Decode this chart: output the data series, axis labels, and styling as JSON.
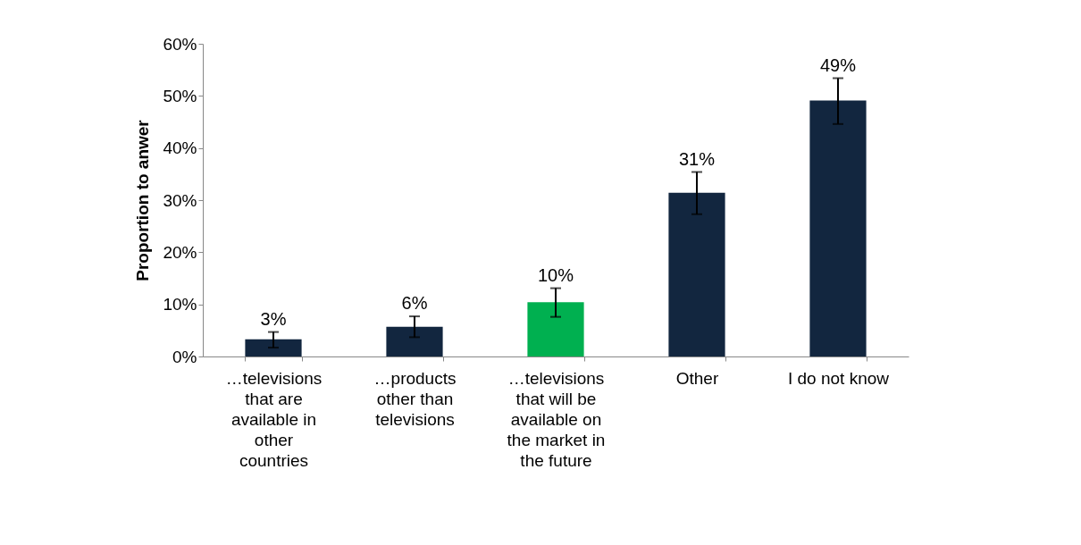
{
  "chart_data": {
    "type": "bar",
    "ylabel": "Proportion to anwer",
    "categories": [
      "…televisions that are available in other countries",
      "…products other than televisions",
      "…televisions that will be available on the market in the future",
      "Other",
      "I do not know"
    ],
    "values": [
      3.3,
      5.7,
      10.4,
      31.4,
      49.1
    ],
    "colors": [
      "#12263f",
      "#12263f",
      "#00b050",
      "#12263f",
      "#12263f"
    ],
    "errors": [
      [
        1.7,
        4.7
      ],
      [
        3.7,
        7.7
      ],
      [
        7.6,
        13.1
      ],
      [
        27.3,
        35.4
      ],
      [
        44.6,
        53.4
      ]
    ],
    "value_labels": [
      "3%",
      "6%",
      "10%",
      "31%",
      "49%"
    ],
    "ylim": [
      0,
      60
    ],
    "yticks": [
      {
        "value": 0,
        "label": "0%"
      },
      {
        "value": 10,
        "label": "10%"
      },
      {
        "value": 20,
        "label": "20%"
      },
      {
        "value": 30,
        "label": "30%"
      },
      {
        "value": 40,
        "label": "40%"
      },
      {
        "value": 50,
        "label": "50%"
      },
      {
        "value": 60,
        "label": "60%"
      }
    ],
    "grid": false
  }
}
